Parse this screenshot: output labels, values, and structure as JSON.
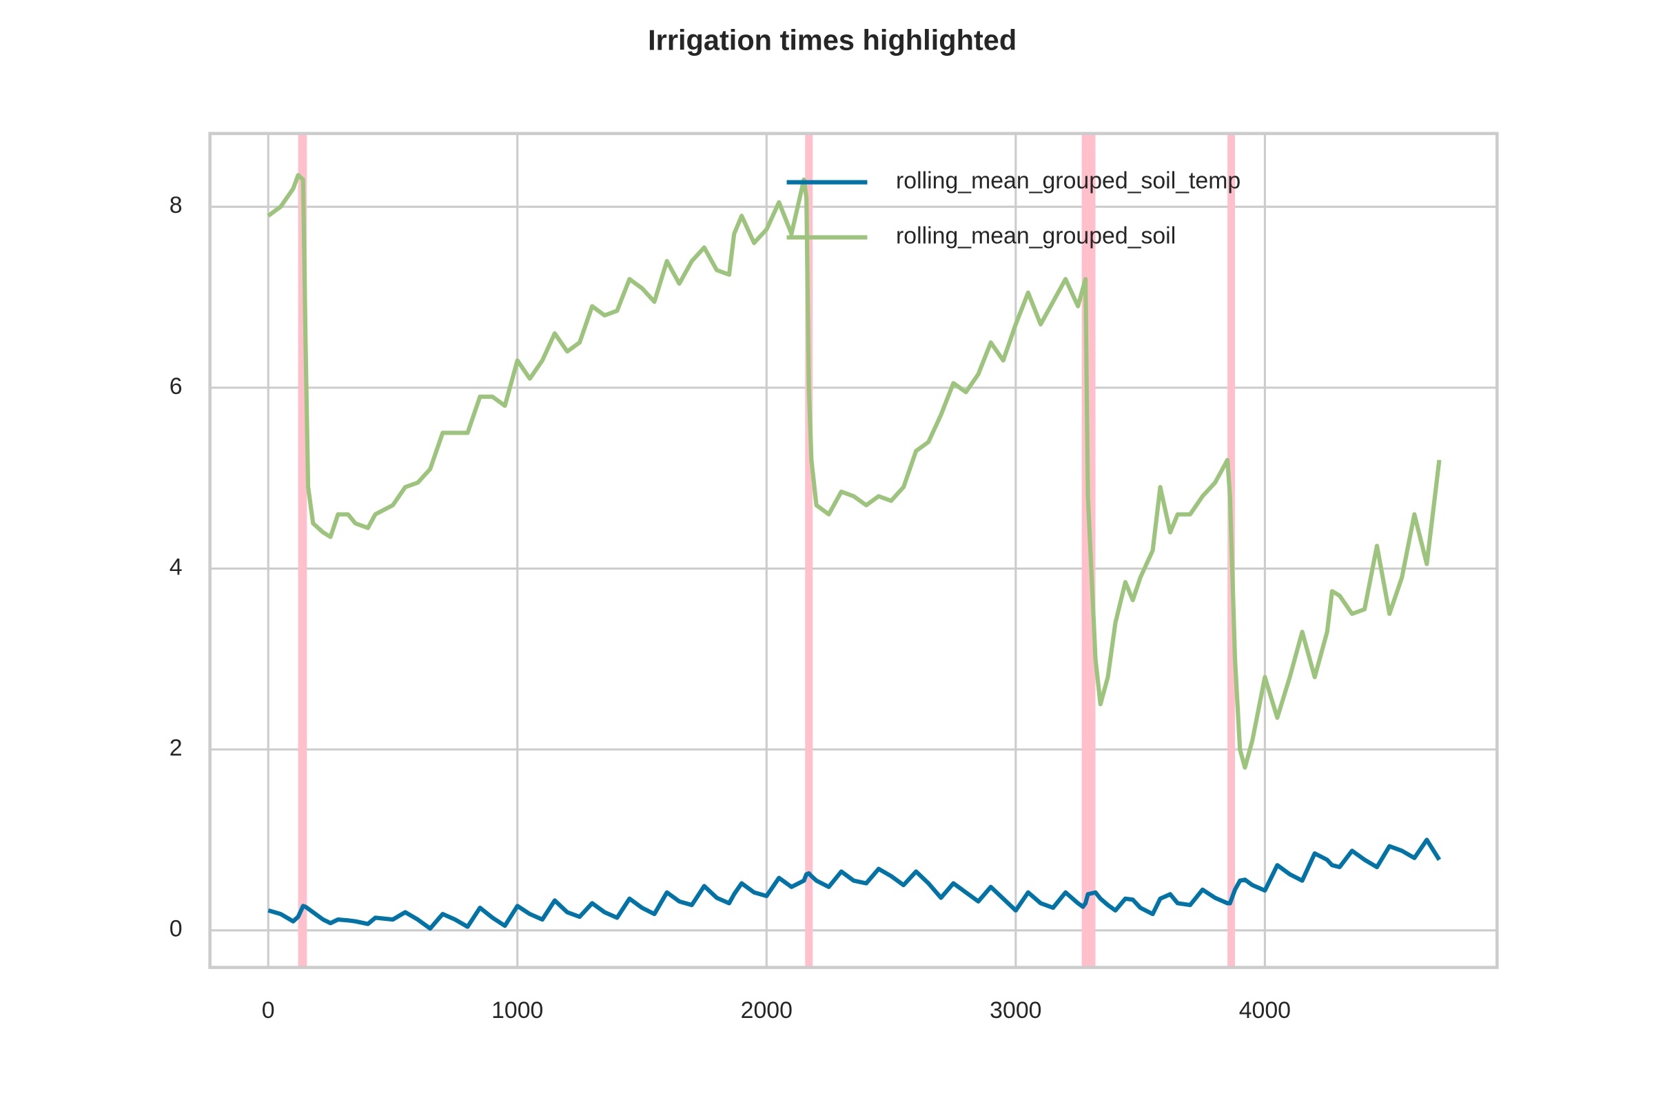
{
  "chart_data": {
    "type": "line",
    "title": "Irrigation times highlighted",
    "x": [
      0,
      50,
      100,
      120,
      140,
      150,
      160,
      180,
      220,
      250,
      280,
      320,
      350,
      400,
      430,
      500,
      550,
      600,
      650,
      700,
      750,
      800,
      850,
      900,
      950,
      1000,
      1050,
      1100,
      1150,
      1200,
      1250,
      1300,
      1350,
      1400,
      1450,
      1500,
      1550,
      1600,
      1650,
      1700,
      1750,
      1800,
      1850,
      1870,
      1900,
      1950,
      2000,
      2050,
      2100,
      2150,
      2160,
      2170,
      2180,
      2200,
      2250,
      2300,
      2350,
      2400,
      2450,
      2500,
      2550,
      2600,
      2650,
      2700,
      2750,
      2800,
      2850,
      2900,
      2950,
      3000,
      3050,
      3100,
      3150,
      3200,
      3250,
      3270,
      3280,
      3290,
      3320,
      3340,
      3370,
      3400,
      3440,
      3470,
      3500,
      3550,
      3580,
      3620,
      3650,
      3700,
      3750,
      3800,
      3850,
      3860,
      3880,
      3900,
      3920,
      3950,
      4000,
      4050,
      4100,
      4150,
      4200,
      4250,
      4270,
      4300,
      4350,
      4400,
      4450,
      4500,
      4550,
      4600,
      4650,
      4700
    ],
    "series": [
      {
        "name": "rolling_mean_grouped_soil_temp",
        "color": "#0173a6",
        "values": [
          0.22,
          0.18,
          0.1,
          0.15,
          0.27,
          0.26,
          0.24,
          0.2,
          0.12,
          0.08,
          0.12,
          0.11,
          0.1,
          0.07,
          0.14,
          0.12,
          0.2,
          0.12,
          0.02,
          0.18,
          0.12,
          0.04,
          0.25,
          0.14,
          0.05,
          0.27,
          0.18,
          0.12,
          0.33,
          0.2,
          0.15,
          0.3,
          0.2,
          0.14,
          0.35,
          0.25,
          0.18,
          0.42,
          0.32,
          0.28,
          0.49,
          0.36,
          0.3,
          0.4,
          0.52,
          0.42,
          0.38,
          0.58,
          0.48,
          0.55,
          0.62,
          0.63,
          0.6,
          0.55,
          0.48,
          0.65,
          0.55,
          0.52,
          0.68,
          0.6,
          0.5,
          0.65,
          0.52,
          0.36,
          0.52,
          0.42,
          0.32,
          0.48,
          0.35,
          0.22,
          0.42,
          0.3,
          0.25,
          0.42,
          0.3,
          0.26,
          0.3,
          0.4,
          0.42,
          0.35,
          0.28,
          0.22,
          0.35,
          0.34,
          0.25,
          0.18,
          0.35,
          0.4,
          0.3,
          0.28,
          0.45,
          0.36,
          0.3,
          0.3,
          0.45,
          0.55,
          0.56,
          0.5,
          0.44,
          0.72,
          0.62,
          0.55,
          0.85,
          0.78,
          0.72,
          0.7,
          0.88,
          0.78,
          0.7,
          0.93,
          0.88,
          0.8,
          1.0,
          0.78
        ]
      },
      {
        "name": "rolling_mean_grouped_soil",
        "color": "#9dc47c",
        "values": [
          7.9,
          8.0,
          8.2,
          8.35,
          8.3,
          6.5,
          4.9,
          4.5,
          4.4,
          4.35,
          4.6,
          4.6,
          4.5,
          4.45,
          4.6,
          4.7,
          4.9,
          4.95,
          5.1,
          5.5,
          5.5,
          5.5,
          5.9,
          5.9,
          5.8,
          6.3,
          6.1,
          6.3,
          6.6,
          6.4,
          6.5,
          6.9,
          6.8,
          6.85,
          7.2,
          7.1,
          6.95,
          7.4,
          7.15,
          7.4,
          7.55,
          7.3,
          7.25,
          7.7,
          7.9,
          7.6,
          7.75,
          8.05,
          7.7,
          8.3,
          8.1,
          6.0,
          5.2,
          4.7,
          4.6,
          4.85,
          4.8,
          4.7,
          4.8,
          4.75,
          4.9,
          5.3,
          5.4,
          5.7,
          6.05,
          5.95,
          6.15,
          6.5,
          6.3,
          6.7,
          7.05,
          6.7,
          6.95,
          7.2,
          6.9,
          7.1,
          7.2,
          4.8,
          3.0,
          2.5,
          2.8,
          3.4,
          3.85,
          3.65,
          3.9,
          4.2,
          4.9,
          4.4,
          4.6,
          4.6,
          4.8,
          4.95,
          5.2,
          4.8,
          3.0,
          2.0,
          1.8,
          2.1,
          2.8,
          2.35,
          2.8,
          3.3,
          2.8,
          3.3,
          3.75,
          3.7,
          3.5,
          3.55,
          4.25,
          3.5,
          3.9,
          4.6,
          4.05,
          5.2
        ]
      }
    ],
    "spans": [
      [
        120,
        155
      ],
      [
        2155,
        2185
      ],
      [
        3265,
        3320
      ],
      [
        3850,
        3880
      ]
    ],
    "span_color": "#ffc0cb",
    "xlim": [
      -234,
      4932
    ],
    "ylim": [
      -0.41,
      8.81
    ],
    "xticks": [
      0,
      1000,
      2000,
      3000,
      4000
    ],
    "yticks": [
      0,
      2,
      4,
      6,
      8
    ],
    "grid": true,
    "legend": "upper right"
  }
}
